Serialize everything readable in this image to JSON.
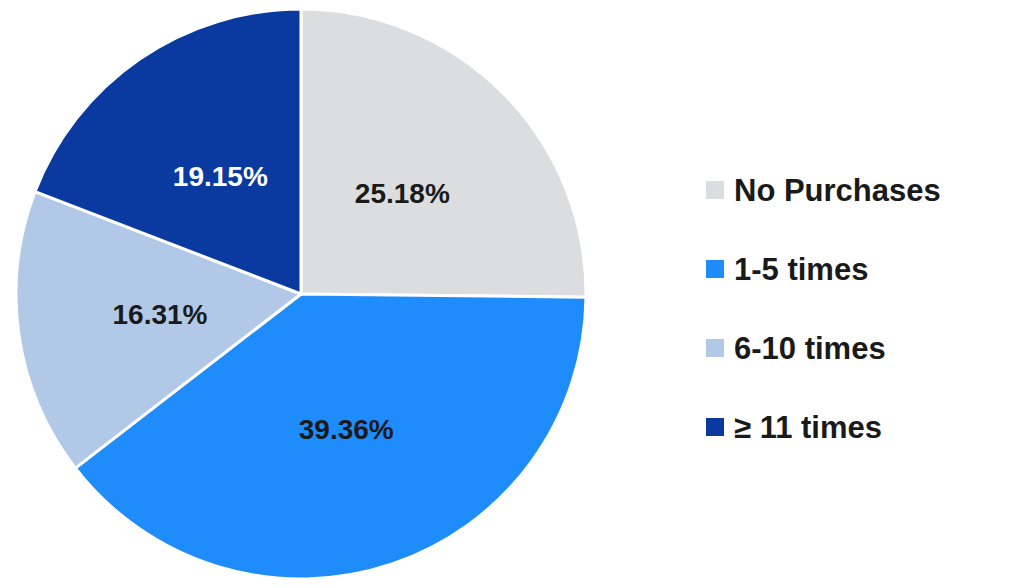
{
  "chart_data": {
    "type": "pie",
    "categories": [
      "No Purchases",
      "1-5 times",
      "6-10 times",
      "≥ 11 times"
    ],
    "values": [
      25.18,
      39.36,
      16.31,
      19.15
    ],
    "value_labels": [
      "25.18%",
      "39.36%",
      "16.31%",
      "19.15%"
    ],
    "colors": [
      "#dcdddf",
      "#1e8cfa",
      "#b1c8e6",
      "#0a3aa0"
    ],
    "data_labels": true,
    "legend": "right"
  }
}
